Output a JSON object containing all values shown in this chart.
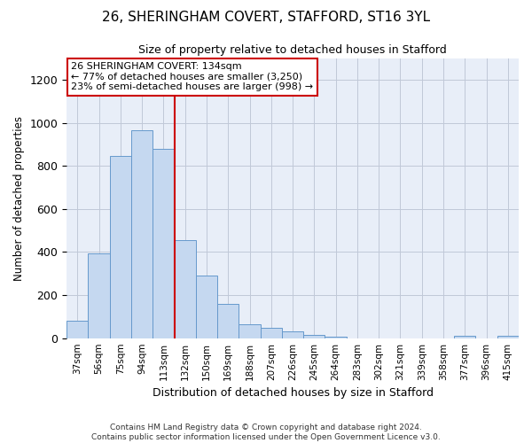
{
  "title": "26, SHERINGHAM COVERT, STAFFORD, ST16 3YL",
  "subtitle": "Size of property relative to detached houses in Stafford",
  "xlabel": "Distribution of detached houses by size in Stafford",
  "ylabel": "Number of detached properties",
  "footer_line1": "Contains HM Land Registry data © Crown copyright and database right 2024.",
  "footer_line2": "Contains public sector information licensed under the Open Government Licence v3.0.",
  "categories": [
    "37sqm",
    "56sqm",
    "75sqm",
    "94sqm",
    "113sqm",
    "132sqm",
    "150sqm",
    "169sqm",
    "188sqm",
    "207sqm",
    "226sqm",
    "245sqm",
    "264sqm",
    "283sqm",
    "302sqm",
    "321sqm",
    "339sqm",
    "358sqm",
    "377sqm",
    "396sqm",
    "415sqm"
  ],
  "values": [
    80,
    395,
    845,
    965,
    880,
    455,
    290,
    160,
    65,
    48,
    30,
    15,
    8,
    0,
    0,
    0,
    0,
    0,
    12,
    0,
    10
  ],
  "bar_color": "#c5d8f0",
  "bar_edge_color": "#6699cc",
  "annotation_text": "26 SHERINGHAM COVERT: 134sqm\n← 77% of detached houses are smaller (3,250)\n23% of semi-detached houses are larger (998) →",
  "vline_index": 5,
  "vline_color": "#cc0000",
  "annotation_box_color": "#ffffff",
  "annotation_box_edge": "#cc0000",
  "ylim": [
    0,
    1300
  ],
  "yticks": [
    0,
    200,
    400,
    600,
    800,
    1000,
    1200
  ],
  "background_color": "#ffffff",
  "plot_bg_color": "#e8eef8",
  "grid_color": "#c0c8d8"
}
